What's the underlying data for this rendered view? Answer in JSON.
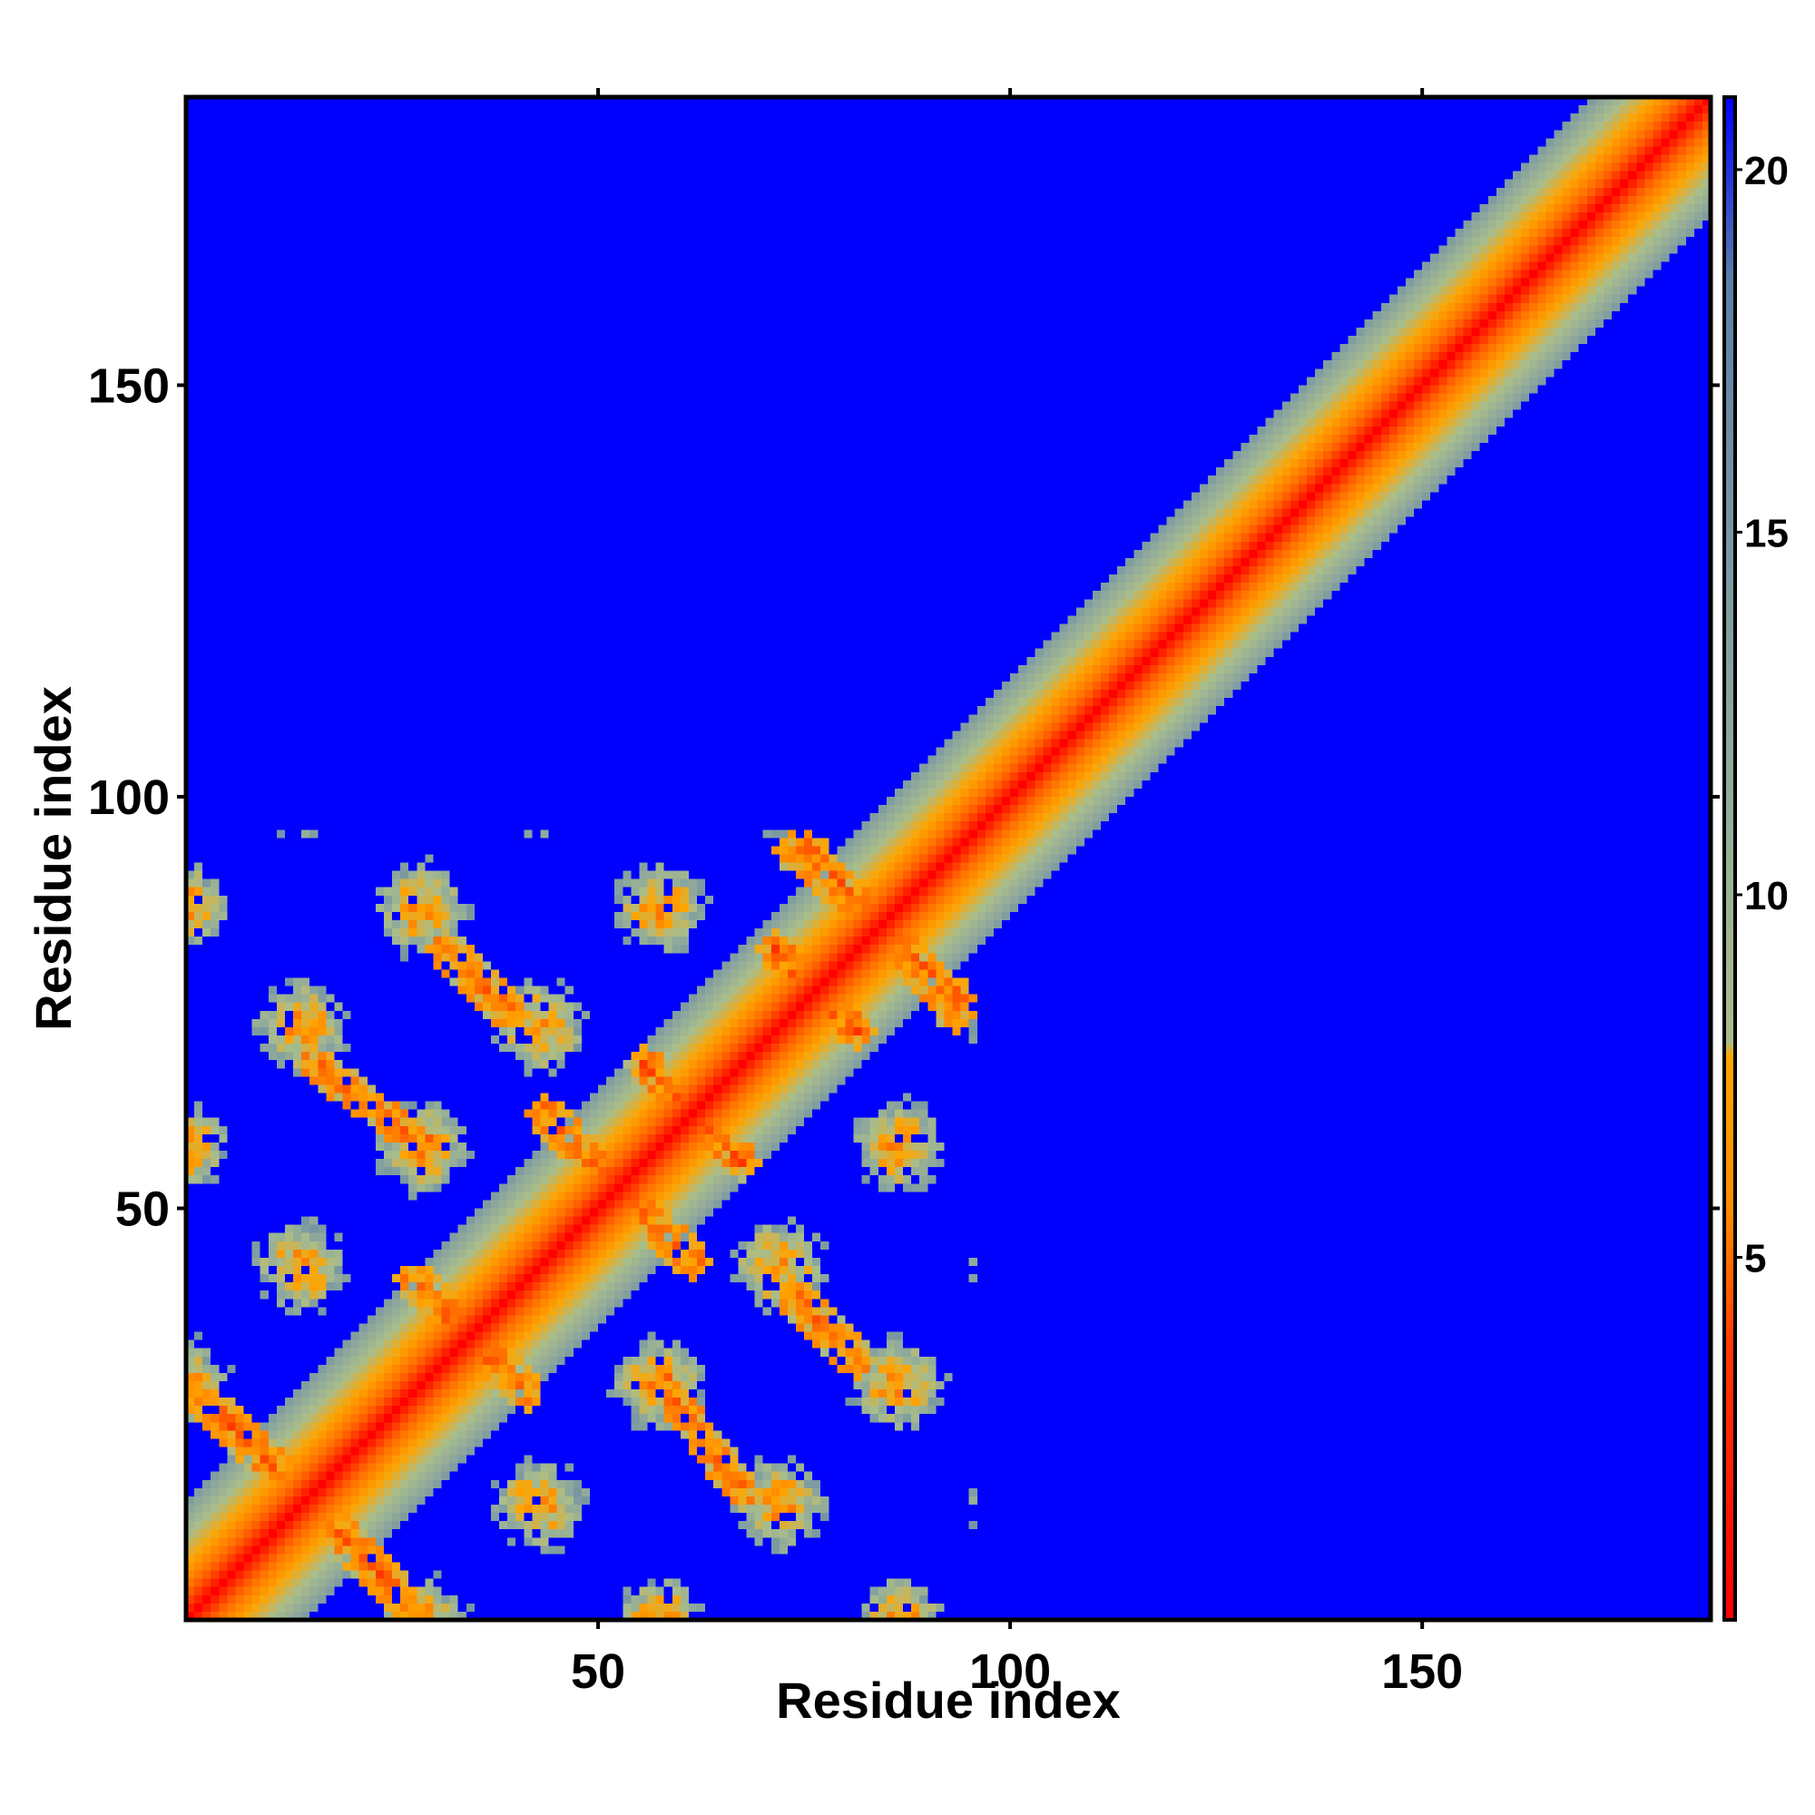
{
  "chart_data": {
    "type": "heatmap",
    "title": "",
    "xlabel": "Residue index",
    "ylabel": "Residue index",
    "xlim": [
      0,
      185
    ],
    "ylim": [
      0,
      185
    ],
    "x_ticks": [
      50,
      100,
      150
    ],
    "y_ticks": [
      50,
      100,
      150
    ],
    "n_residues": 185,
    "colorbar": {
      "ticks": [
        5,
        10,
        15,
        20
      ],
      "range": [
        0,
        21
      ],
      "colors_low_to_high": [
        "#ff0000",
        "#ff6a00",
        "#ffa500",
        "#a9bd8a",
        "#8aa59e",
        "#5b7fa8",
        "#0000ff"
      ]
    },
    "structure": {
      "diagonal": "distance 0 on diagonal, increasing with |i-j|; band width about 12 residues",
      "compact_region": "residues 1-100 form a compact lattice of contacts (distance < 12)",
      "antiparallel_contacts": [
        {
          "x": [
            2,
            28
          ],
          "y": [
            28,
            2
          ]
        },
        {
          "x": [
            28,
            42
          ],
          "y": [
            42,
            28
          ]
        },
        {
          "x": [
            56,
            68
          ],
          "y": [
            68,
            56
          ]
        },
        {
          "x": [
            72,
            82
          ],
          "y": [
            82,
            72
          ]
        },
        {
          "x": [
            44,
            62
          ],
          "y": [
            62,
            44
          ]
        },
        {
          "x": [
            16,
            30
          ],
          "y": [
            68,
            58
          ]
        },
        {
          "x": [
            32,
            40
          ],
          "y": [
            82,
            74
          ]
        },
        {
          "x": [
            74,
            94
          ],
          "y": [
            94,
            76
          ]
        }
      ]
    }
  }
}
